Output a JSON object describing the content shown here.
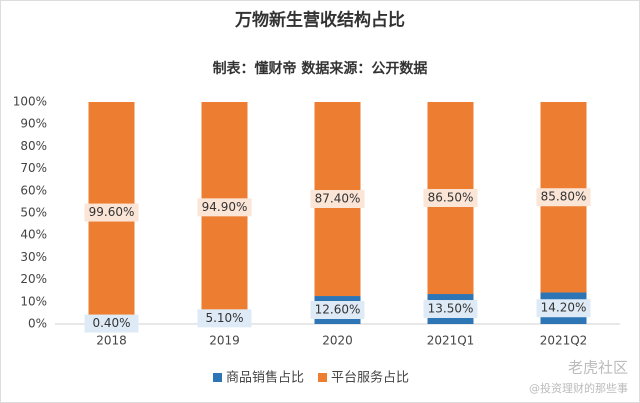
{
  "chart_data": {
    "type": "stacked_bar",
    "title": "万物新生营收结构占比",
    "subtitle": "制表：懂财帝  数据来源：公开数据",
    "categories": [
      "2018",
      "2019",
      "2020",
      "2021Q1",
      "2021Q2"
    ],
    "series": [
      {
        "name": "商品销售占比",
        "color": "#2e75b6",
        "values": [
          0.4,
          5.1,
          12.6,
          13.5,
          14.2
        ],
        "value_labels": [
          "0.40%",
          "5.10%",
          "12.60%",
          "13.50%",
          "14.20%"
        ]
      },
      {
        "name": "平台服务占比",
        "color": "#ed7d31",
        "values": [
          99.6,
          94.9,
          87.4,
          86.5,
          85.8
        ],
        "value_labels": [
          "99.60%",
          "94.90%",
          "87.40%",
          "86.50%",
          "85.80%"
        ]
      }
    ],
    "ylim": [
      0,
      100
    ],
    "yticks": [
      {
        "value": 0,
        "label": "0%"
      },
      {
        "value": 10,
        "label": "10%"
      },
      {
        "value": 20,
        "label": "20%"
      },
      {
        "value": 30,
        "label": "30%"
      },
      {
        "value": 40,
        "label": "40%"
      },
      {
        "value": 50,
        "label": "50%"
      },
      {
        "value": 60,
        "label": "60%"
      },
      {
        "value": 70,
        "label": "70%"
      },
      {
        "value": 80,
        "label": "80%"
      },
      {
        "value": 90,
        "label": "90%"
      },
      {
        "value": 100,
        "label": "100%"
      }
    ],
    "legend": "bottom",
    "watermark": [
      "老虎社区",
      "@投资理财的那些事"
    ]
  }
}
